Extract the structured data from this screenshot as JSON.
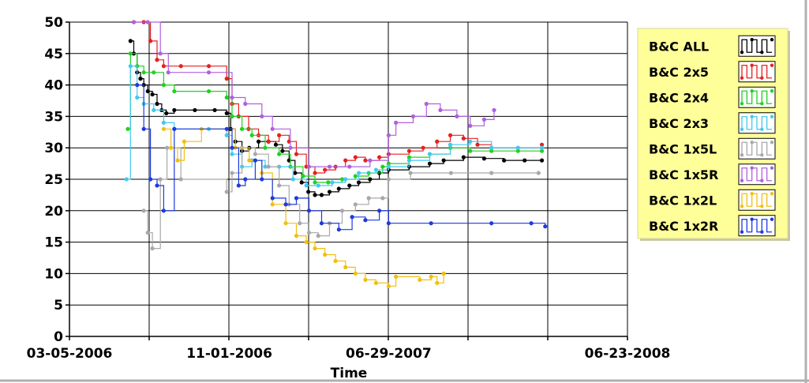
{
  "chart_data": {
    "type": "line",
    "title": "",
    "xlabel": "Time",
    "ylabel": "",
    "ylim": [
      0,
      50
    ],
    "yticks": [
      0,
      5,
      10,
      15,
      20,
      25,
      30,
      35,
      40,
      45,
      50
    ],
    "xlim": [
      "2006-03-05",
      "2008-06-23"
    ],
    "xtick_labels": [
      "03-05-2006",
      "11-01-2006",
      "06-29-2007",
      "06-23-2008"
    ],
    "xtick_dates": [
      "2006-03-05",
      "2006-11-01",
      "2007-06-29",
      "2008-06-23"
    ],
    "grid": true,
    "legend_position": "top-right",
    "series": [
      {
        "name": "B&C ALL",
        "color": "#000000",
        "points": [
          [
            "2006-06-05",
            47
          ],
          [
            "2006-06-10",
            45
          ],
          [
            "2006-06-15",
            42
          ],
          [
            "2006-06-20",
            41
          ],
          [
            "2006-06-25",
            40
          ],
          [
            "2006-07-01",
            39
          ],
          [
            "2006-07-08",
            38.5
          ],
          [
            "2006-07-15",
            37
          ],
          [
            "2006-07-22",
            36
          ],
          [
            "2006-07-29",
            35.5
          ],
          [
            "2006-08-10",
            36
          ],
          [
            "2006-09-10",
            36
          ],
          [
            "2006-10-10",
            36
          ],
          [
            "2006-10-28",
            35.5
          ],
          [
            "2006-11-03",
            33
          ],
          [
            "2006-11-10",
            31
          ],
          [
            "2006-11-20",
            29.5
          ],
          [
            "2006-12-01",
            30
          ],
          [
            "2006-12-15",
            31
          ],
          [
            "2006-12-30",
            31
          ],
          [
            "2007-01-10",
            30.5
          ],
          [
            "2007-01-20",
            29.5
          ],
          [
            "2007-01-30",
            28
          ],
          [
            "2007-02-08",
            26
          ],
          [
            "2007-02-18",
            24.5
          ],
          [
            "2007-02-28",
            23
          ],
          [
            "2007-03-10",
            22.5
          ],
          [
            "2007-03-20",
            22.5
          ],
          [
            "2007-04-01",
            23
          ],
          [
            "2007-04-15",
            23.5
          ],
          [
            "2007-05-01",
            24
          ],
          [
            "2007-05-15",
            24.5
          ],
          [
            "2007-06-01",
            25
          ],
          [
            "2007-06-15",
            26
          ],
          [
            "2007-06-29",
            26.5
          ],
          [
            "2007-07-30",
            27
          ],
          [
            "2007-08-30",
            27.5
          ],
          [
            "2007-09-20",
            28
          ],
          [
            "2007-10-20",
            28.5
          ],
          [
            "2007-11-20",
            28.3
          ],
          [
            "2007-12-20",
            28
          ],
          [
            "2008-01-20",
            28
          ],
          [
            "2008-02-15",
            28
          ]
        ]
      },
      {
        "name": "B&C 2x5",
        "color": "#e62020",
        "points": [
          [
            "2006-06-10",
            50
          ],
          [
            "2006-06-25",
            50
          ],
          [
            "2006-07-05",
            47
          ],
          [
            "2006-07-15",
            44
          ],
          [
            "2006-07-25",
            43
          ],
          [
            "2006-08-20",
            43
          ],
          [
            "2006-10-01",
            43
          ],
          [
            "2006-10-28",
            41
          ],
          [
            "2006-11-05",
            37
          ],
          [
            "2006-11-15",
            35
          ],
          [
            "2006-11-30",
            33
          ],
          [
            "2006-12-15",
            32
          ],
          [
            "2006-12-30",
            31
          ],
          [
            "2007-01-15",
            32
          ],
          [
            "2007-01-30",
            31
          ],
          [
            "2007-02-10",
            29
          ],
          [
            "2007-02-25",
            27
          ],
          [
            "2007-03-10",
            26
          ],
          [
            "2007-03-25",
            26.5
          ],
          [
            "2007-04-10",
            27
          ],
          [
            "2007-04-25",
            28
          ],
          [
            "2007-05-10",
            28.5
          ],
          [
            "2007-05-25",
            28
          ],
          [
            "2007-06-15",
            28.5
          ],
          [
            "2007-06-29",
            29
          ],
          [
            "2007-07-30",
            29.5
          ],
          [
            "2007-08-20",
            30
          ],
          [
            "2007-09-10",
            31
          ],
          [
            "2007-09-30",
            32
          ],
          [
            "2007-10-20",
            31.5
          ],
          [
            "2007-11-10",
            30.5
          ],
          [
            "2007-12-01",
            30
          ],
          [
            "2008-01-10",
            30
          ],
          [
            "2008-02-15",
            30.5
          ]
        ]
      },
      {
        "name": "B&C 2x4",
        "color": "#22d022",
        "points": [
          [
            "2006-06-01",
            33
          ],
          [
            "2006-06-05",
            45
          ],
          [
            "2006-06-15",
            43
          ],
          [
            "2006-06-25",
            42
          ],
          [
            "2006-07-10",
            42
          ],
          [
            "2006-07-25",
            40
          ],
          [
            "2006-08-10",
            39
          ],
          [
            "2006-10-01",
            39
          ],
          [
            "2006-10-28",
            38
          ],
          [
            "2006-11-05",
            35
          ],
          [
            "2006-11-20",
            33
          ],
          [
            "2006-12-05",
            32
          ],
          [
            "2006-12-25",
            30
          ],
          [
            "2007-01-15",
            29
          ],
          [
            "2007-02-01",
            27
          ],
          [
            "2007-02-20",
            25.5
          ],
          [
            "2007-03-10",
            24.5
          ],
          [
            "2007-03-30",
            24.5
          ],
          [
            "2007-04-20",
            25
          ],
          [
            "2007-05-10",
            25.5
          ],
          [
            "2007-05-30",
            26
          ],
          [
            "2007-06-20",
            27
          ],
          [
            "2007-06-29",
            27.5
          ],
          [
            "2007-07-30",
            28.5
          ],
          [
            "2007-08-30",
            29
          ],
          [
            "2007-09-30",
            30
          ],
          [
            "2007-10-30",
            29.5
          ],
          [
            "2007-12-01",
            29.5
          ],
          [
            "2008-01-10",
            29.5
          ],
          [
            "2008-02-15",
            29.5
          ]
        ]
      },
      {
        "name": "B&C 2x3",
        "color": "#44c8f0",
        "points": [
          [
            "2006-05-30",
            25
          ],
          [
            "2006-06-05",
            43
          ],
          [
            "2006-06-15",
            38
          ],
          [
            "2006-06-25",
            37
          ],
          [
            "2006-07-10",
            36
          ],
          [
            "2006-07-25",
            34
          ],
          [
            "2006-08-10",
            33
          ],
          [
            "2006-10-01",
            33
          ],
          [
            "2006-10-28",
            32
          ],
          [
            "2006-11-05",
            29
          ],
          [
            "2006-11-20",
            27
          ],
          [
            "2006-12-05",
            28
          ],
          [
            "2006-12-25",
            27
          ],
          [
            "2007-01-15",
            27
          ],
          [
            "2007-02-05",
            25
          ],
          [
            "2007-02-25",
            24
          ],
          [
            "2007-03-15",
            24
          ],
          [
            "2007-04-05",
            24.5
          ],
          [
            "2007-04-25",
            25
          ],
          [
            "2007-05-15",
            26
          ],
          [
            "2007-06-10",
            26.5
          ],
          [
            "2007-06-29",
            27
          ],
          [
            "2007-07-30",
            28
          ],
          [
            "2007-08-30",
            29
          ],
          [
            "2007-09-30",
            30.5
          ],
          [
            "2007-10-30",
            31
          ],
          [
            "2007-12-01",
            30
          ],
          [
            "2008-01-10",
            30
          ],
          [
            "2008-02-15",
            30
          ]
        ]
      },
      {
        "name": "B&C 1x5L",
        "color": "#a8a8a8",
        "points": [
          [
            "2006-06-25",
            20
          ],
          [
            "2006-07-01",
            16.5
          ],
          [
            "2006-07-08",
            14
          ],
          [
            "2006-07-20",
            25
          ],
          [
            "2006-07-30",
            30
          ],
          [
            "2006-08-20",
            25
          ],
          [
            "2006-10-28",
            23
          ],
          [
            "2006-11-05",
            26
          ],
          [
            "2006-11-20",
            30
          ],
          [
            "2006-12-10",
            29
          ],
          [
            "2006-12-30",
            27
          ],
          [
            "2007-01-15",
            24
          ],
          [
            "2007-01-30",
            21
          ],
          [
            "2007-02-15",
            18
          ],
          [
            "2007-03-01",
            16.5
          ],
          [
            "2007-03-15",
            16
          ],
          [
            "2007-04-01",
            18
          ],
          [
            "2007-04-20",
            20
          ],
          [
            "2007-05-10",
            21
          ],
          [
            "2007-05-30",
            22
          ],
          [
            "2007-06-20",
            22
          ],
          [
            "2007-06-29",
            25
          ],
          [
            "2007-08-01",
            26
          ],
          [
            "2007-10-01",
            26
          ],
          [
            "2007-12-01",
            26
          ],
          [
            "2008-02-10",
            26
          ]
        ]
      },
      {
        "name": "B&C 1x5R",
        "color": "#b060e0",
        "points": [
          [
            "2006-06-10",
            50
          ],
          [
            "2006-07-01",
            50
          ],
          [
            "2006-07-20",
            45
          ],
          [
            "2006-08-01",
            42
          ],
          [
            "2006-10-01",
            42
          ],
          [
            "2006-11-05",
            38
          ],
          [
            "2006-11-25",
            37
          ],
          [
            "2006-12-20",
            35
          ],
          [
            "2007-01-05",
            33
          ],
          [
            "2007-02-01",
            30
          ],
          [
            "2007-03-01",
            27
          ],
          [
            "2007-04-01",
            27
          ],
          [
            "2007-05-01",
            27
          ],
          [
            "2007-06-01",
            28
          ],
          [
            "2007-06-29",
            32
          ],
          [
            "2007-07-10",
            34
          ],
          [
            "2007-08-05",
            35
          ],
          [
            "2007-08-25",
            37
          ],
          [
            "2007-09-15",
            36
          ],
          [
            "2007-10-10",
            35
          ],
          [
            "2007-10-30",
            33.5
          ],
          [
            "2007-11-20",
            34.5
          ],
          [
            "2007-12-05",
            36
          ]
        ]
      },
      {
        "name": "B&C 1x2L",
        "color": "#f0c010",
        "points": [
          [
            "2006-07-25",
            33
          ],
          [
            "2006-08-05",
            30
          ],
          [
            "2006-08-15",
            28
          ],
          [
            "2006-08-25",
            31
          ],
          [
            "2006-09-20",
            33
          ],
          [
            "2006-11-10",
            30
          ],
          [
            "2006-12-01",
            28
          ],
          [
            "2006-12-20",
            26
          ],
          [
            "2007-01-05",
            21
          ],
          [
            "2007-01-25",
            18
          ],
          [
            "2007-02-10",
            16
          ],
          [
            "2007-02-25",
            15
          ],
          [
            "2007-03-10",
            14
          ],
          [
            "2007-03-25",
            13
          ],
          [
            "2007-04-10",
            12
          ],
          [
            "2007-04-25",
            11
          ],
          [
            "2007-05-10",
            10
          ],
          [
            "2007-05-25",
            9
          ],
          [
            "2007-06-10",
            8.5
          ],
          [
            "2007-06-29",
            8
          ],
          [
            "2007-07-10",
            9.5
          ],
          [
            "2007-08-15",
            9
          ],
          [
            "2007-09-01",
            9.5
          ],
          [
            "2007-09-10",
            8.5
          ],
          [
            "2007-09-20",
            10
          ]
        ]
      },
      {
        "name": "B&C 1x2R",
        "color": "#1e3ae0",
        "points": [
          [
            "2006-06-15",
            40
          ],
          [
            "2006-06-25",
            33
          ],
          [
            "2006-07-05",
            25
          ],
          [
            "2006-07-15",
            24
          ],
          [
            "2006-07-25",
            20
          ],
          [
            "2006-08-10",
            33
          ],
          [
            "2006-10-28",
            33
          ],
          [
            "2006-11-05",
            30
          ],
          [
            "2006-11-15",
            24
          ],
          [
            "2006-11-25",
            25
          ],
          [
            "2006-12-10",
            28
          ],
          [
            "2006-12-20",
            25
          ],
          [
            "2007-01-05",
            22
          ],
          [
            "2007-01-25",
            21
          ],
          [
            "2007-02-10",
            22
          ],
          [
            "2007-03-01",
            20
          ],
          [
            "2007-03-20",
            18
          ],
          [
            "2007-04-15",
            17
          ],
          [
            "2007-05-05",
            19
          ],
          [
            "2007-05-25",
            18.5
          ],
          [
            "2007-06-15",
            20
          ],
          [
            "2007-06-29",
            18
          ],
          [
            "2007-09-01",
            18
          ],
          [
            "2007-12-01",
            18
          ],
          [
            "2008-01-30",
            18
          ],
          [
            "2008-02-20",
            17.5
          ]
        ]
      }
    ]
  }
}
